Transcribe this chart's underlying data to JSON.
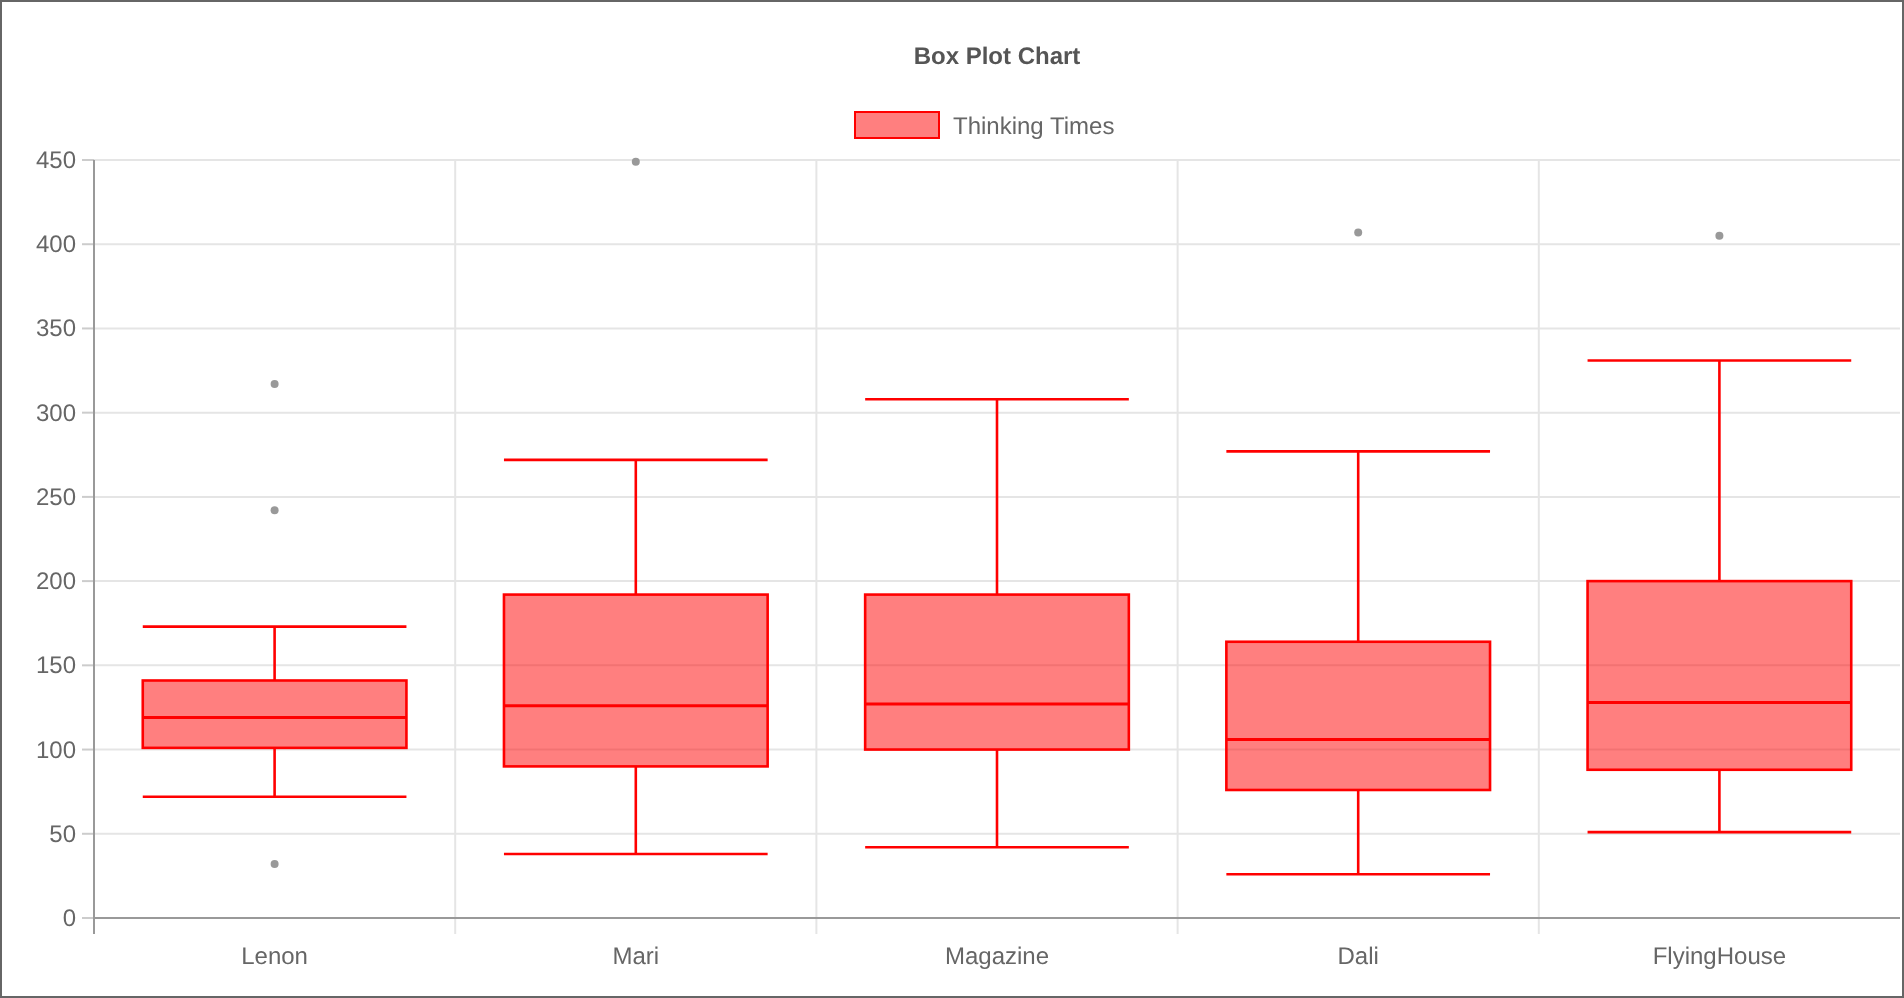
{
  "chart_data": {
    "type": "box",
    "title": "Box Plot Chart",
    "categories": [
      "Lenon",
      "Mari",
      "Magazine",
      "Dali",
      "FlyingHouse"
    ],
    "series": [
      {
        "name": "Thinking Times",
        "color": "#ff0000",
        "boxes": [
          {
            "low": 72,
            "q1": 101,
            "median": 119,
            "q3": 141,
            "high": 173,
            "outliers": [
              317,
              242,
              32
            ]
          },
          {
            "low": 38,
            "q1": 90,
            "median": 126,
            "q3": 192,
            "high": 272,
            "outliers": [
              449
            ]
          },
          {
            "low": 42,
            "q1": 100,
            "median": 127,
            "q3": 192,
            "high": 308
          },
          {
            "low": 26,
            "q1": 76,
            "median": 106,
            "q3": 164,
            "high": 277,
            "outliers": [
              407
            ]
          },
          {
            "low": 51,
            "q1": 88,
            "median": 128,
            "q3": 200,
            "high": 331,
            "outliers": [
              405
            ]
          }
        ]
      }
    ],
    "ylim": [
      0,
      450
    ],
    "yticks": [
      0,
      50,
      100,
      150,
      200,
      250,
      300,
      350,
      400,
      450
    ],
    "grid": true,
    "legend": "top"
  }
}
